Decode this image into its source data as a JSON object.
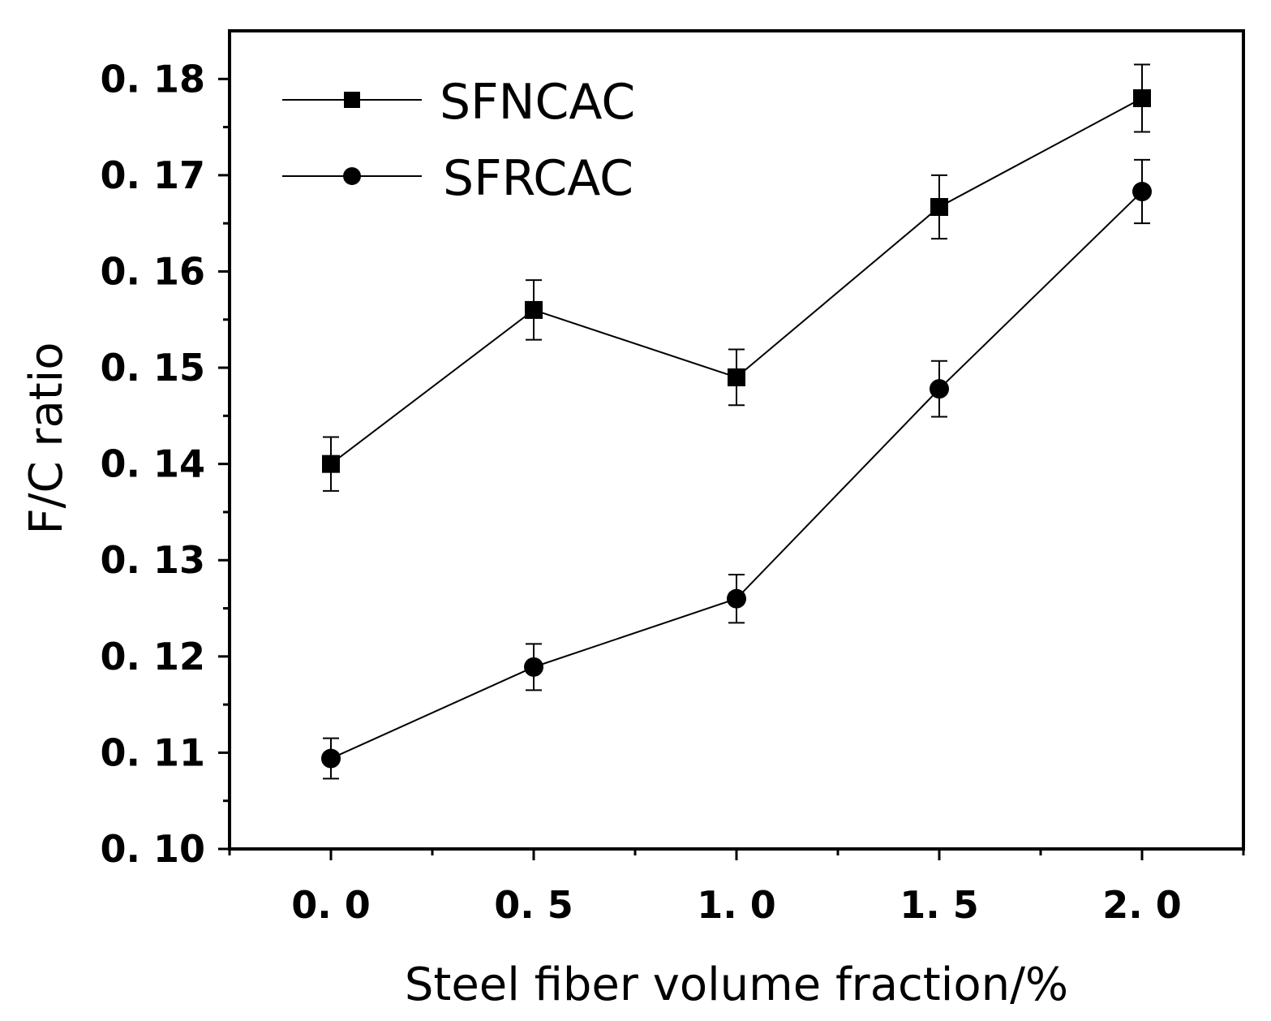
{
  "chart_data": {
    "type": "line",
    "title": "",
    "xlabel": "Steel fiber volume fraction/%",
    "ylabel": "F/C ratio",
    "xlim": [
      -0.25,
      2.25
    ],
    "ylim": [
      0.1,
      0.185
    ],
    "x_ticks": [
      0.0,
      0.5,
      1.0,
      1.5,
      2.0
    ],
    "x_tick_labels": [
      "0. 0",
      "0. 5",
      "1. 0",
      "1. 5",
      "2. 0"
    ],
    "y_ticks": [
      0.1,
      0.11,
      0.12,
      0.13,
      0.14,
      0.15,
      0.16,
      0.17,
      0.18
    ],
    "y_tick_labels": [
      "0. 10",
      "0. 11",
      "0. 12",
      "0. 13",
      "0. 14",
      "0. 15",
      "0. 16",
      "0. 17",
      "0. 18"
    ],
    "grid": false,
    "legend_position": "top-left",
    "x": [
      0.0,
      0.5,
      1.0,
      1.5,
      2.0
    ],
    "series": [
      {
        "name": "SFNCAC",
        "marker": "square",
        "values": [
          0.14,
          0.156,
          0.149,
          0.1667,
          0.178
        ],
        "errors": [
          0.0028,
          0.0031,
          0.0029,
          0.0033,
          0.0035
        ]
      },
      {
        "name": "SFRCAC",
        "marker": "circle",
        "values": [
          0.1094,
          0.1189,
          0.126,
          0.1478,
          0.1683
        ],
        "errors": [
          0.0021,
          0.0024,
          0.0025,
          0.0029,
          0.0033
        ]
      }
    ],
    "colors": {
      "line": "#000000",
      "marker": "#000000"
    }
  }
}
